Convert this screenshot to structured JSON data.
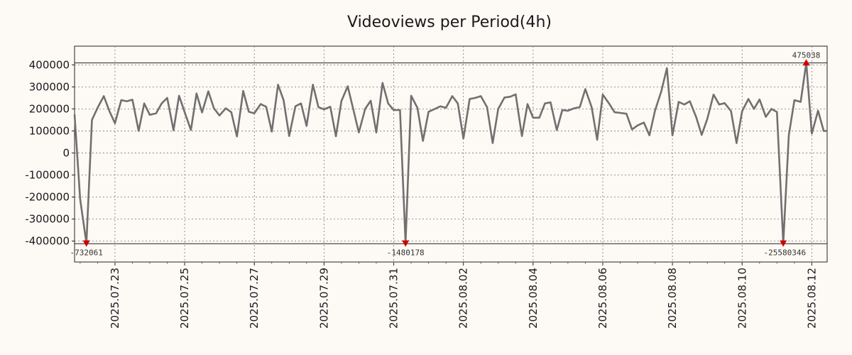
{
  "chart_data": {
    "type": "line",
    "title": "Videoviews per Period(4h)",
    "xlabel": "",
    "ylabel": "",
    "ylim": [
      -495000,
      485000
    ],
    "yticks": [
      400000,
      300000,
      200000,
      100000,
      0,
      -100000,
      -200000,
      -300000,
      -400000
    ],
    "ytick_labels": [
      "400000",
      "300000",
      "200000",
      "100000",
      "0",
      "-100000",
      "-200000",
      "-300000",
      "-400000"
    ],
    "x_range_days": [
      0,
      10.8
    ],
    "xticks": [
      {
        "day": 0.58,
        "label": "2025.07.23"
      },
      {
        "day": 1.58,
        "label": "2025.07.25"
      },
      {
        "day": 2.58,
        "label": "2025.07.27"
      },
      {
        "day": 3.58,
        "label": "2025.07.29"
      },
      {
        "day": 4.58,
        "label": "2025.07.31"
      },
      {
        "day": 5.58,
        "label": "2025.08.02"
      },
      {
        "day": 6.58,
        "label": "2025.08.04"
      },
      {
        "day": 7.58,
        "label": "2025.08.06"
      },
      {
        "day": 8.58,
        "label": "2025.08.08"
      },
      {
        "day": 9.58,
        "label": "2025.08.10"
      },
      {
        "day": 10.58,
        "label": "2025.08.12"
      }
    ],
    "series": [
      {
        "name": "Videoviews",
        "color": "#707070",
        "points": [
          [
            0,
            175000
          ],
          [
            0.08,
            -210000
          ],
          [
            0.17,
            -410000
          ],
          [
            0.25,
            150000
          ],
          [
            0.33,
            205000
          ],
          [
            0.42,
            258000
          ],
          [
            0.5,
            190000
          ],
          [
            0.58,
            135000
          ],
          [
            0.67,
            240000
          ],
          [
            0.75,
            235000
          ],
          [
            0.83,
            242000
          ],
          [
            0.92,
            100000
          ],
          [
            1.0,
            225000
          ],
          [
            1.08,
            173000
          ],
          [
            1.17,
            180000
          ],
          [
            1.25,
            225000
          ],
          [
            1.33,
            250000
          ],
          [
            1.42,
            103000
          ],
          [
            1.5,
            260000
          ],
          [
            1.58,
            185000
          ],
          [
            1.67,
            104000
          ],
          [
            1.75,
            270000
          ],
          [
            1.83,
            184000
          ],
          [
            1.92,
            280000
          ],
          [
            2.0,
            203000
          ],
          [
            2.08,
            170000
          ],
          [
            2.17,
            203000
          ],
          [
            2.25,
            185000
          ],
          [
            2.33,
            75000
          ],
          [
            2.42,
            282000
          ],
          [
            2.5,
            187000
          ],
          [
            2.58,
            180000
          ],
          [
            2.67,
            222000
          ],
          [
            2.75,
            210000
          ],
          [
            2.83,
            97000
          ],
          [
            2.92,
            310000
          ],
          [
            3.0,
            240000
          ],
          [
            3.08,
            77000
          ],
          [
            3.17,
            212000
          ],
          [
            3.25,
            225000
          ],
          [
            3.33,
            123000
          ],
          [
            3.42,
            310000
          ],
          [
            3.5,
            208000
          ],
          [
            3.58,
            198000
          ],
          [
            3.67,
            210000
          ],
          [
            3.75,
            76000
          ],
          [
            3.83,
            236000
          ],
          [
            3.92,
            303000
          ],
          [
            4.0,
            198000
          ],
          [
            4.08,
            93000
          ],
          [
            4.17,
            200000
          ],
          [
            4.25,
            237000
          ],
          [
            4.33,
            93000
          ],
          [
            4.42,
            318000
          ],
          [
            4.5,
            225000
          ],
          [
            4.58,
            195000
          ],
          [
            4.67,
            195000
          ],
          [
            4.75,
            -410000
          ],
          [
            4.83,
            260000
          ],
          [
            4.92,
            205000
          ],
          [
            5.0,
            55000
          ],
          [
            5.08,
            187000
          ],
          [
            5.17,
            200000
          ],
          [
            5.25,
            212000
          ],
          [
            5.33,
            205000
          ],
          [
            5.42,
            258000
          ],
          [
            5.5,
            225000
          ],
          [
            5.58,
            66000
          ],
          [
            5.67,
            245000
          ],
          [
            5.75,
            250000
          ],
          [
            5.83,
            258000
          ],
          [
            5.92,
            208000
          ],
          [
            6.0,
            45000
          ],
          [
            6.08,
            200000
          ],
          [
            6.17,
            252000
          ],
          [
            6.25,
            255000
          ],
          [
            6.33,
            266000
          ],
          [
            6.42,
            77000
          ],
          [
            6.5,
            222000
          ],
          [
            6.58,
            160000
          ],
          [
            6.67,
            160000
          ],
          [
            6.75,
            225000
          ],
          [
            6.83,
            230000
          ],
          [
            6.92,
            104000
          ],
          [
            7.0,
            195000
          ],
          [
            7.08,
            192000
          ],
          [
            7.17,
            203000
          ],
          [
            7.25,
            208000
          ],
          [
            7.33,
            290000
          ],
          [
            7.42,
            208000
          ],
          [
            7.5,
            60000
          ],
          [
            7.58,
            265000
          ],
          [
            7.67,
            225000
          ],
          [
            7.75,
            185000
          ],
          [
            7.83,
            182000
          ],
          [
            7.92,
            178000
          ],
          [
            8.0,
            107000
          ],
          [
            8.08,
            125000
          ],
          [
            8.17,
            138000
          ],
          [
            8.25,
            80000
          ],
          [
            8.33,
            193000
          ],
          [
            8.42,
            280000
          ],
          [
            8.5,
            385000
          ],
          [
            8.58,
            80000
          ],
          [
            8.67,
            232000
          ],
          [
            8.75,
            220000
          ],
          [
            8.83,
            235000
          ],
          [
            8.92,
            163000
          ],
          [
            9.0,
            82000
          ],
          [
            9.08,
            155000
          ],
          [
            9.17,
            265000
          ],
          [
            9.25,
            220000
          ],
          [
            9.33,
            226000
          ],
          [
            9.42,
            190000
          ],
          [
            9.5,
            45000
          ],
          [
            9.58,
            190000
          ],
          [
            9.67,
            245000
          ],
          [
            9.75,
            200000
          ],
          [
            9.83,
            243000
          ],
          [
            9.92,
            164000
          ],
          [
            10.0,
            200000
          ],
          [
            10.08,
            186000
          ],
          [
            10.17,
            -410000
          ],
          [
            10.25,
            80000
          ],
          [
            10.33,
            240000
          ],
          [
            10.42,
            232000
          ],
          [
            10.5,
            410000
          ],
          [
            10.58,
            88000
          ],
          [
            10.67,
            192000
          ],
          [
            10.75,
            100000
          ],
          [
            10.8,
            100000
          ]
        ]
      }
    ],
    "hlines": [
      409000,
      -412000
    ],
    "annotations": [
      {
        "day": 0.17,
        "value": -410000,
        "label": "-732061",
        "marker": "down",
        "label_anchor": "middle",
        "label_dx": 0
      },
      {
        "day": 4.75,
        "value": -410000,
        "label": "-1480178",
        "marker": "down",
        "label_anchor": "middle",
        "label_dx": 0
      },
      {
        "day": 10.17,
        "value": -410000,
        "label": "-25580346",
        "marker": "down",
        "label_anchor": "end",
        "label_dx": 32
      },
      {
        "day": 10.5,
        "value": 410000,
        "label": "475038",
        "marker": "up",
        "label_anchor": "middle",
        "label_dx": 0
      }
    ],
    "marker_color": "#cc0000",
    "grid": true
  }
}
